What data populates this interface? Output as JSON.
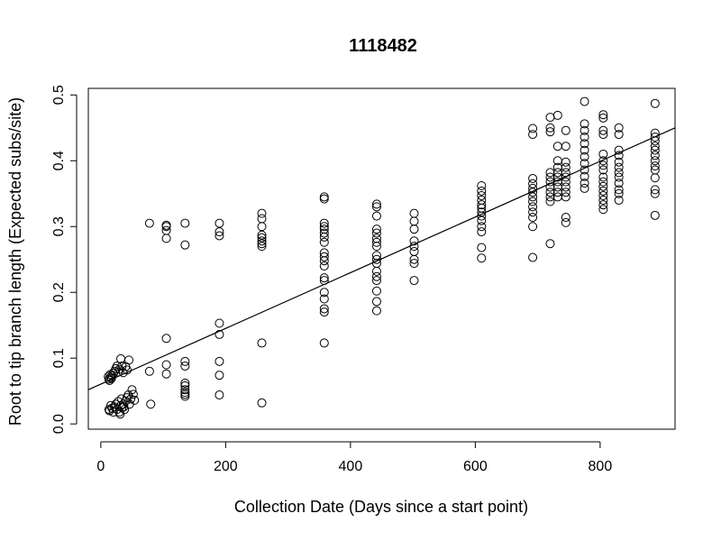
{
  "chart_data": {
    "type": "scatter",
    "title": "1118482",
    "xlabel": "Collection Date (Days since a start point)",
    "ylabel": "Root to tip branch length (Expected subs/site)",
    "xlim": [
      -20,
      920
    ],
    "ylim": [
      -0.008,
      0.51
    ],
    "x_ticks": [
      0,
      200,
      400,
      600,
      800
    ],
    "x_tick_labels": [
      "0",
      "200",
      "400",
      "600",
      "800"
    ],
    "y_ticks": [
      0.0,
      0.1,
      0.2,
      0.3,
      0.4,
      0.5
    ],
    "y_tick_labels": [
      "0.0",
      "0.1",
      "0.2",
      "0.3",
      "0.4",
      "0.5"
    ],
    "grid": false,
    "marker": "open-circle",
    "regression_line": {
      "x": [
        -20,
        920
      ],
      "y": [
        0.052,
        0.45
      ]
    },
    "points": [
      [
        12,
        0.072
      ],
      [
        13,
        0.068
      ],
      [
        14,
        0.066
      ],
      [
        15,
        0.075
      ],
      [
        16,
        0.071
      ],
      [
        17,
        0.069
      ],
      [
        18,
        0.073
      ],
      [
        20,
        0.077
      ],
      [
        22,
        0.08
      ],
      [
        24,
        0.084
      ],
      [
        26,
        0.088
      ],
      [
        28,
        0.079
      ],
      [
        30,
        0.083
      ],
      [
        32,
        0.099
      ],
      [
        34,
        0.088
      ],
      [
        36,
        0.078
      ],
      [
        40,
        0.087
      ],
      [
        42,
        0.082
      ],
      [
        45,
        0.097
      ],
      [
        13,
        0.022
      ],
      [
        14,
        0.02
      ],
      [
        16,
        0.028
      ],
      [
        18,
        0.024
      ],
      [
        20,
        0.018
      ],
      [
        22,
        0.026
      ],
      [
        24,
        0.03
      ],
      [
        26,
        0.022
      ],
      [
        28,
        0.034
      ],
      [
        30,
        0.018
      ],
      [
        31,
        0.015
      ],
      [
        32,
        0.028
      ],
      [
        34,
        0.025
      ],
      [
        36,
        0.03
      ],
      [
        38,
        0.022
      ],
      [
        40,
        0.035
      ],
      [
        42,
        0.04
      ],
      [
        44,
        0.044
      ],
      [
        46,
        0.03
      ],
      [
        48,
        0.038
      ],
      [
        50,
        0.052
      ],
      [
        52,
        0.045
      ],
      [
        54,
        0.036
      ],
      [
        33,
        0.038
      ],
      [
        37,
        0.026
      ],
      [
        78,
        0.305
      ],
      [
        78,
        0.08
      ],
      [
        80,
        0.03
      ],
      [
        105,
        0.3
      ],
      [
        105,
        0.302
      ],
      [
        105,
        0.294
      ],
      [
        105,
        0.282
      ],
      [
        105,
        0.13
      ],
      [
        105,
        0.09
      ],
      [
        105,
        0.076
      ],
      [
        135,
        0.305
      ],
      [
        135,
        0.272
      ],
      [
        135,
        0.095
      ],
      [
        135,
        0.088
      ],
      [
        135,
        0.062
      ],
      [
        135,
        0.058
      ],
      [
        135,
        0.052
      ],
      [
        135,
        0.048
      ],
      [
        135,
        0.045
      ],
      [
        135,
        0.042
      ],
      [
        190,
        0.305
      ],
      [
        190,
        0.292
      ],
      [
        190,
        0.286
      ],
      [
        190,
        0.153
      ],
      [
        190,
        0.136
      ],
      [
        190,
        0.095
      ],
      [
        190,
        0.074
      ],
      [
        190,
        0.044
      ],
      [
        258,
        0.32
      ],
      [
        258,
        0.312
      ],
      [
        258,
        0.3
      ],
      [
        258,
        0.287
      ],
      [
        258,
        0.283
      ],
      [
        258,
        0.278
      ],
      [
        258,
        0.274
      ],
      [
        258,
        0.27
      ],
      [
        258,
        0.123
      ],
      [
        258,
        0.032
      ],
      [
        358,
        0.345
      ],
      [
        358,
        0.342
      ],
      [
        358,
        0.305
      ],
      [
        358,
        0.3
      ],
      [
        358,
        0.296
      ],
      [
        358,
        0.29
      ],
      [
        358,
        0.284
      ],
      [
        358,
        0.276
      ],
      [
        358,
        0.26
      ],
      [
        358,
        0.254
      ],
      [
        358,
        0.248
      ],
      [
        358,
        0.24
      ],
      [
        358,
        0.222
      ],
      [
        358,
        0.218
      ],
      [
        358,
        0.2
      ],
      [
        358,
        0.19
      ],
      [
        358,
        0.175
      ],
      [
        358,
        0.17
      ],
      [
        358,
        0.123
      ],
      [
        442,
        0.334
      ],
      [
        442,
        0.33
      ],
      [
        442,
        0.316
      ],
      [
        442,
        0.296
      ],
      [
        442,
        0.29
      ],
      [
        442,
        0.282
      ],
      [
        442,
        0.276
      ],
      [
        442,
        0.27
      ],
      [
        442,
        0.256
      ],
      [
        442,
        0.25
      ],
      [
        442,
        0.244
      ],
      [
        442,
        0.232
      ],
      [
        442,
        0.224
      ],
      [
        442,
        0.218
      ],
      [
        442,
        0.202
      ],
      [
        442,
        0.186
      ],
      [
        442,
        0.172
      ],
      [
        502,
        0.32
      ],
      [
        502,
        0.308
      ],
      [
        502,
        0.296
      ],
      [
        502,
        0.278
      ],
      [
        502,
        0.27
      ],
      [
        502,
        0.262
      ],
      [
        502,
        0.25
      ],
      [
        502,
        0.244
      ],
      [
        502,
        0.218
      ],
      [
        610,
        0.362
      ],
      [
        610,
        0.354
      ],
      [
        610,
        0.347
      ],
      [
        610,
        0.34
      ],
      [
        610,
        0.333
      ],
      [
        610,
        0.328
      ],
      [
        610,
        0.322
      ],
      [
        610,
        0.316
      ],
      [
        610,
        0.309
      ],
      [
        610,
        0.3
      ],
      [
        610,
        0.292
      ],
      [
        610,
        0.268
      ],
      [
        610,
        0.252
      ],
      [
        692,
        0.449
      ],
      [
        692,
        0.44
      ],
      [
        692,
        0.373
      ],
      [
        692,
        0.365
      ],
      [
        692,
        0.358
      ],
      [
        692,
        0.352
      ],
      [
        692,
        0.345
      ],
      [
        692,
        0.338
      ],
      [
        692,
        0.33
      ],
      [
        692,
        0.322
      ],
      [
        692,
        0.314
      ],
      [
        692,
        0.3
      ],
      [
        692,
        0.253
      ],
      [
        720,
        0.466
      ],
      [
        720,
        0.45
      ],
      [
        720,
        0.444
      ],
      [
        720,
        0.382
      ],
      [
        720,
        0.375
      ],
      [
        720,
        0.368
      ],
      [
        720,
        0.36
      ],
      [
        720,
        0.352
      ],
      [
        720,
        0.345
      ],
      [
        720,
        0.338
      ],
      [
        720,
        0.274
      ],
      [
        732,
        0.469
      ],
      [
        732,
        0.422
      ],
      [
        732,
        0.4
      ],
      [
        732,
        0.39
      ],
      [
        732,
        0.382
      ],
      [
        732,
        0.375
      ],
      [
        732,
        0.368
      ],
      [
        732,
        0.36
      ],
      [
        732,
        0.352
      ],
      [
        732,
        0.345
      ],
      [
        745,
        0.446
      ],
      [
        745,
        0.422
      ],
      [
        745,
        0.398
      ],
      [
        745,
        0.39
      ],
      [
        745,
        0.382
      ],
      [
        745,
        0.375
      ],
      [
        745,
        0.368
      ],
      [
        745,
        0.36
      ],
      [
        745,
        0.352
      ],
      [
        745,
        0.345
      ],
      [
        745,
        0.314
      ],
      [
        745,
        0.306
      ],
      [
        775,
        0.49
      ],
      [
        775,
        0.456
      ],
      [
        775,
        0.446
      ],
      [
        775,
        0.436
      ],
      [
        775,
        0.426
      ],
      [
        775,
        0.416
      ],
      [
        775,
        0.406
      ],
      [
        775,
        0.396
      ],
      [
        775,
        0.386
      ],
      [
        775,
        0.376
      ],
      [
        775,
        0.366
      ],
      [
        775,
        0.358
      ],
      [
        805,
        0.47
      ],
      [
        805,
        0.465
      ],
      [
        805,
        0.446
      ],
      [
        805,
        0.44
      ],
      [
        805,
        0.41
      ],
      [
        805,
        0.4
      ],
      [
        805,
        0.393
      ],
      [
        805,
        0.386
      ],
      [
        805,
        0.375
      ],
      [
        805,
        0.368
      ],
      [
        805,
        0.361
      ],
      [
        805,
        0.354
      ],
      [
        805,
        0.347
      ],
      [
        805,
        0.34
      ],
      [
        805,
        0.333
      ],
      [
        805,
        0.326
      ],
      [
        830,
        0.45
      ],
      [
        830,
        0.44
      ],
      [
        830,
        0.416
      ],
      [
        830,
        0.408
      ],
      [
        830,
        0.398
      ],
      [
        830,
        0.39
      ],
      [
        830,
        0.382
      ],
      [
        830,
        0.375
      ],
      [
        830,
        0.366
      ],
      [
        830,
        0.356
      ],
      [
        830,
        0.35
      ],
      [
        830,
        0.34
      ],
      [
        888,
        0.487
      ],
      [
        888,
        0.442
      ],
      [
        888,
        0.436
      ],
      [
        888,
        0.43
      ],
      [
        888,
        0.422
      ],
      [
        888,
        0.416
      ],
      [
        888,
        0.408
      ],
      [
        888,
        0.4
      ],
      [
        888,
        0.392
      ],
      [
        888,
        0.386
      ],
      [
        888,
        0.374
      ],
      [
        888,
        0.356
      ],
      [
        888,
        0.35
      ],
      [
        888,
        0.317
      ]
    ]
  }
}
